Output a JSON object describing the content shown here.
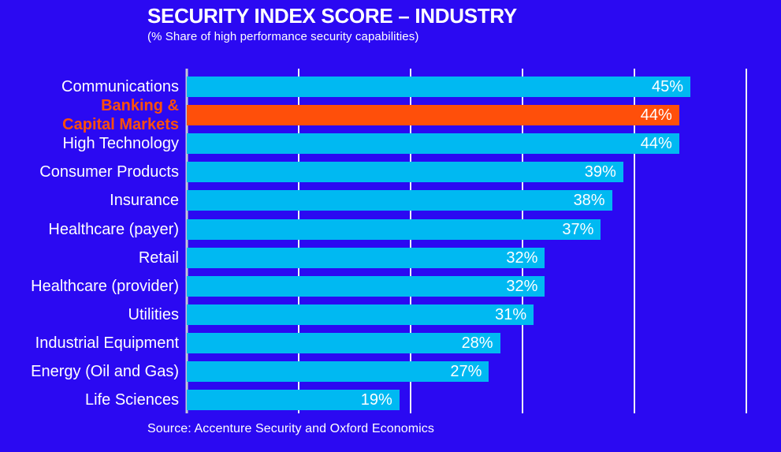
{
  "colors": {
    "background": "#2b09f2",
    "bar": "#00b9f2",
    "highlight": "#ff4f0a",
    "text": "#ffffff",
    "gridline": "#eef0f8",
    "axis": "#c6c8d6"
  },
  "chart_data": {
    "type": "bar",
    "orientation": "horizontal",
    "title": "SECURITY INDEX SCORE – INDUSTRY",
    "subtitle": "(% Share of high performance security capabilities)",
    "source": "Source: Accenture Security and Oxford Economics",
    "xlim": [
      0,
      50
    ],
    "gridline_interval": 10,
    "value_suffix": "%",
    "legend": "none",
    "grid": "vertical-lines-on",
    "rows": [
      {
        "label": "Communications",
        "value": 45,
        "display": "45%",
        "highlight": false
      },
      {
        "label": "Banking &\nCapital Markets",
        "value": 44,
        "display": "44%",
        "highlight": true
      },
      {
        "label": "High Technology",
        "value": 44,
        "display": "44%",
        "highlight": false
      },
      {
        "label": "Consumer Products",
        "value": 39,
        "display": "39%",
        "highlight": false
      },
      {
        "label": "Insurance",
        "value": 38,
        "display": "38%",
        "highlight": false
      },
      {
        "label": "Healthcare (payer)",
        "value": 37,
        "display": "37%",
        "highlight": false
      },
      {
        "label": "Retail",
        "value": 32,
        "display": "32%",
        "highlight": false
      },
      {
        "label": "Healthcare (provider)",
        "value": 32,
        "display": "32%",
        "highlight": false
      },
      {
        "label": "Utilities",
        "value": 31,
        "display": "31%",
        "highlight": false
      },
      {
        "label": "Industrial Equipment",
        "value": 28,
        "display": "28%",
        "highlight": false
      },
      {
        "label": "Energy (Oil and Gas)",
        "value": 27,
        "display": "27%",
        "highlight": false
      },
      {
        "label": "Life Sciences",
        "value": 19,
        "display": "19%",
        "highlight": false
      }
    ]
  }
}
